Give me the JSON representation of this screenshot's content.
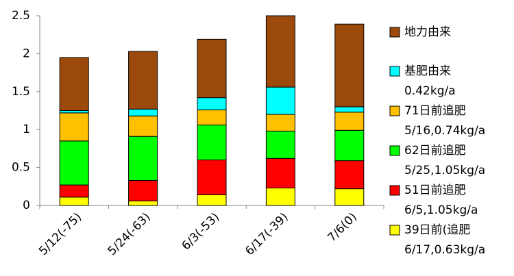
{
  "chart_data": {
    "type": "stacked_bar",
    "categories": [
      "5/12(-75)",
      "5/24(-63)",
      "6/3(-53)",
      "6/17(-39)",
      "7/6(0)"
    ],
    "series": [
      {
        "name": "39日前(追肥",
        "note": "6/17,0.63kg/a",
        "color": "#ffff00",
        "values": [
          0.11,
          0.06,
          0.14,
          0.23,
          0.22
        ]
      },
      {
        "name": "51日前追肥",
        "note": "6/5,1.05kg/a",
        "color": "#ff0000",
        "values": [
          0.16,
          0.27,
          0.46,
          0.39,
          0.37
        ]
      },
      {
        "name": "62日前追肥",
        "note": "5/25,1.05kg/a",
        "color": "#00ff00",
        "values": [
          0.58,
          0.58,
          0.46,
          0.36,
          0.4
        ]
      },
      {
        "name": "71日前追肥",
        "note": "5/16,0.74kg/a",
        "color": "#ffc000",
        "values": [
          0.37,
          0.27,
          0.2,
          0.22,
          0.24
        ]
      },
      {
        "name": "基肥由来",
        "note": "0.42kg/a",
        "color": "#00ffff",
        "values": [
          0.03,
          0.09,
          0.16,
          0.36,
          0.07
        ]
      },
      {
        "name": "地力由来",
        "color": "#9c4a0c",
        "values": [
          0.7,
          0.76,
          0.77,
          0.94,
          1.09
        ]
      }
    ],
    "ylim": [
      0,
      2.5
    ],
    "yticks": [
      0,
      0.5,
      1,
      1.5,
      2,
      2.5
    ],
    "grid": false,
    "legend": "right"
  }
}
